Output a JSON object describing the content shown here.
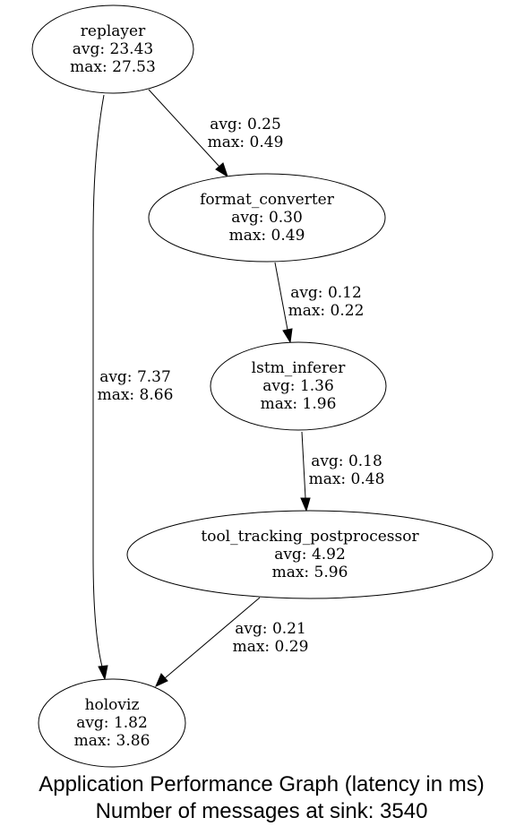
{
  "nodes": {
    "replayer": {
      "name": "replayer",
      "avg": "avg: 23.43",
      "max": "max: 27.53"
    },
    "format_converter": {
      "name": "format_converter",
      "avg": "avg: 0.30",
      "max": "max: 0.49"
    },
    "lstm_inferer": {
      "name": "lstm_inferer",
      "avg": "avg: 1.36",
      "max": "max: 1.96"
    },
    "tool_tracking_postprocessor": {
      "name": "tool_tracking_postprocessor",
      "avg": "avg: 4.92",
      "max": "max: 5.96"
    },
    "holoviz": {
      "name": "holoviz",
      "avg": "avg: 1.82",
      "max": "max: 3.86"
    }
  },
  "edges": {
    "replayer_to_format_converter": {
      "from": "replayer",
      "to": "format_converter",
      "avg": "avg: 0.25",
      "max": "max: 0.49"
    },
    "format_converter_to_lstm_inferer": {
      "from": "format_converter",
      "to": "lstm_inferer",
      "avg": "avg: 0.12",
      "max": "max: 0.22"
    },
    "lstm_inferer_to_tool_tracking_postprocessor": {
      "from": "lstm_inferer",
      "to": "tool_tracking_postprocessor",
      "avg": "avg: 0.18",
      "max": "max: 0.48"
    },
    "tool_tracking_postprocessor_to_holoviz": {
      "from": "tool_tracking_postprocessor",
      "to": "holoviz",
      "avg": "avg: 0.21",
      "max": "max: 0.29"
    },
    "replayer_to_holoviz": {
      "from": "replayer",
      "to": "holoviz",
      "avg": "avg: 7.37",
      "max": "max: 8.66"
    }
  },
  "caption": {
    "line1": "Application Performance Graph (latency in ms)",
    "line2": "Number of messages at sink: 3540"
  }
}
